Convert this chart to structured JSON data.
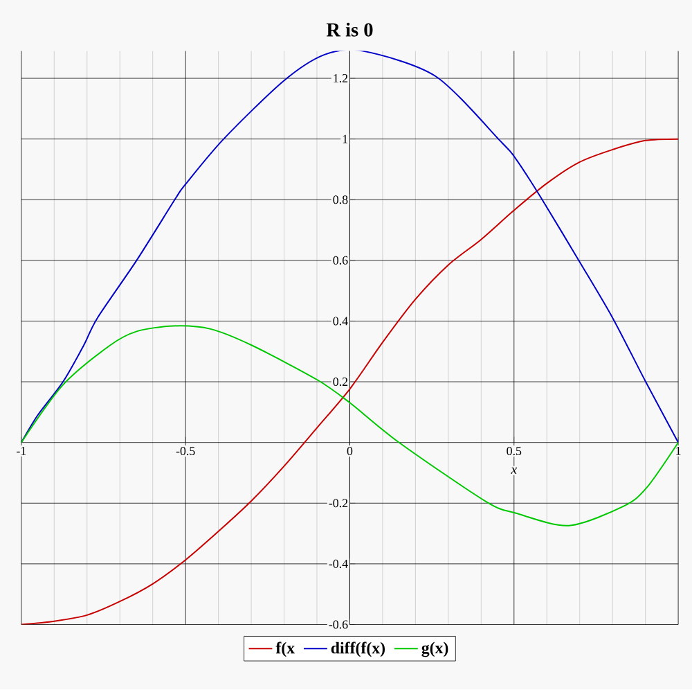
{
  "chart_data": {
    "type": "line",
    "title": "R is 0",
    "xlabel": "x",
    "xlim": [
      -1,
      1
    ],
    "ylim": [
      -0.6,
      1.29
    ],
    "xticks": [
      -1,
      -0.5,
      0,
      0.5,
      1
    ],
    "yticks": [
      -0.6,
      -0.4,
      -0.2,
      0.2,
      0.4,
      0.6,
      0.8,
      1,
      1.2
    ],
    "grid": true,
    "legend": "bottom",
    "marker": "none",
    "line_style": "solid",
    "series": [
      {
        "name": "f(x",
        "color": "#c80000",
        "x": [
          -1,
          -0.9,
          -0.8,
          -0.7,
          -0.6,
          -0.5,
          -0.4,
          -0.3,
          -0.2,
          -0.1,
          0,
          0.1,
          0.2,
          0.3,
          0.4,
          0.5,
          0.6,
          0.7,
          0.8,
          0.9,
          1
        ],
        "values": [
          -0.6,
          -0.589,
          -0.569,
          -0.524,
          -0.466,
          -0.387,
          -0.293,
          -0.193,
          -0.078,
          0.048,
          0.176,
          0.33,
          0.472,
          0.585,
          0.669,
          0.765,
          0.854,
          0.924,
          0.965,
          0.995,
          1.0
        ]
      },
      {
        "name": "diff(f(x)",
        "color": "#0000c8",
        "x": [
          -1,
          -0.95,
          -0.873,
          -0.81,
          -0.768,
          -0.649,
          -0.53,
          -0.5,
          -0.384,
          -0.203,
          -0.077,
          0.04,
          0.261,
          0.457,
          0.506,
          0.583,
          0.701,
          0.8,
          0.9,
          1
        ],
        "values": [
          0,
          0.09,
          0.2,
          0.32,
          0.411,
          0.6,
          0.805,
          0.851,
          1.0,
          1.19,
          1.278,
          1.29,
          1.207,
          0.995,
          0.934,
          0.805,
          0.593,
          0.411,
          0.202,
          0
        ]
      },
      {
        "name": "g(x)",
        "color": "#00c800",
        "x": [
          -1,
          -0.873,
          -0.73,
          -0.649,
          -0.537,
          -0.424,
          -0.298,
          -0.1,
          0,
          0.15,
          0.415,
          0.506,
          0.667,
          0.834,
          0.904,
          1
        ],
        "values": [
          0,
          0.19,
          0.32,
          0.366,
          0.384,
          0.374,
          0.32,
          0.207,
          0.131,
          0,
          -0.195,
          -0.233,
          -0.274,
          -0.21,
          -0.149,
          0
        ]
      }
    ]
  }
}
